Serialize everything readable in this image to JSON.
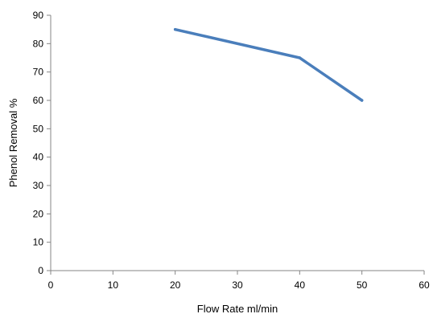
{
  "chart_data": {
    "type": "line",
    "xlabel": "Flow Rate ml/min",
    "ylabel": "Phenol Removal %",
    "xlim": [
      0,
      60
    ],
    "ylim": [
      0,
      90
    ],
    "x_ticks": [
      0,
      10,
      20,
      30,
      40,
      50,
      60
    ],
    "y_ticks": [
      0,
      10,
      20,
      30,
      40,
      50,
      60,
      70,
      80,
      90
    ],
    "grid": false,
    "legend": "none",
    "series": [
      {
        "color": "#4a7ebb",
        "x": [
          20,
          40,
          50
        ],
        "y": [
          85,
          75,
          60
        ]
      }
    ]
  }
}
